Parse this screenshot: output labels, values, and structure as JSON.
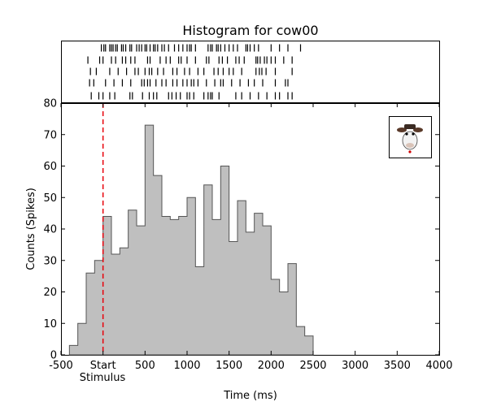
{
  "chart_data": {
    "type": "bar",
    "title": "Histogram for cow00",
    "xlabel": "Time (ms)",
    "ylabel": "Counts (Spikes)",
    "xlim": [
      -500,
      4000
    ],
    "ylim": [
      0,
      80
    ],
    "xtick_values": [
      -500,
      0,
      500,
      1000,
      1500,
      2000,
      2500,
      3000,
      3500,
      4000
    ],
    "xtick_labels": [
      "-500",
      "Start",
      "500",
      "1000",
      "1500",
      "2000",
      "2500",
      "3000",
      "3500",
      "4000"
    ],
    "xtick_sublabel": "Stimulus",
    "ytick_values": [
      0,
      10,
      20,
      30,
      40,
      50,
      60,
      70,
      80
    ],
    "ytick_labels": [
      "0",
      "10",
      "20",
      "30",
      "40",
      "50",
      "60",
      "70",
      "80"
    ],
    "bin_start": -400,
    "bin_width": 100,
    "values": [
      3,
      10,
      26,
      30,
      44,
      32,
      34,
      46,
      41,
      73,
      57,
      44,
      43,
      44,
      50,
      28,
      54,
      43,
      60,
      36,
      49,
      39,
      45,
      41,
      24,
      20,
      29,
      9,
      6
    ],
    "fill_color": "#bfbfbf",
    "edge_color": "#555555",
    "stimulus_marker": {
      "x": 0,
      "color": "#e8000b",
      "style": "dashed"
    },
    "raster": {
      "rows": [
        [
          -20,
          10,
          30,
          80,
          100,
          120,
          150,
          170,
          220,
          240,
          270,
          320,
          340,
          400,
          430,
          460,
          500,
          520,
          560,
          600,
          620,
          650,
          700,
          730,
          780,
          850,
          900,
          950,
          1000,
          1030,
          1050,
          1100,
          1250,
          1280,
          1300,
          1350,
          1370,
          1400,
          1450,
          1500,
          1550,
          1600,
          1700,
          1720,
          1750,
          1800,
          1850,
          2000,
          2100,
          2200,
          2350
        ],
        [
          -180,
          -40,
          0,
          100,
          150,
          230,
          270,
          330,
          380,
          530,
          560,
          680,
          750,
          800,
          900,
          930,
          1000,
          1100,
          1230,
          1260,
          1380,
          1420,
          1480,
          1580,
          1620,
          1680,
          1820,
          1840,
          1870,
          1920,
          1950,
          2000,
          2050,
          2150,
          2250
        ],
        [
          -150,
          -80,
          80,
          180,
          280,
          380,
          420,
          500,
          550,
          580,
          650,
          720,
          830,
          880,
          970,
          1030,
          1130,
          1200,
          1320,
          1370,
          1430,
          1500,
          1550,
          1650,
          1820,
          1860,
          1890,
          1940,
          2050,
          2250
        ],
        [
          -160,
          -110,
          30,
          130,
          230,
          330,
          460,
          490,
          530,
          560,
          630,
          700,
          750,
          830,
          880,
          950,
          1000,
          1050,
          1080,
          1130,
          1230,
          1330,
          1400,
          1430,
          1530,
          1630,
          1730,
          1800,
          1900,
          2050,
          2170,
          2200
        ],
        [
          -140,
          -50,
          0,
          80,
          140,
          320,
          350,
          470,
          550,
          600,
          640,
          780,
          820,
          870,
          920,
          1000,
          1030,
          1080,
          1200,
          1250,
          1280,
          1300,
          1380,
          1580,
          1650,
          1750,
          1850,
          1950,
          2050,
          2100,
          2200,
          2250
        ]
      ]
    },
    "legend_icon": "cow-face-icon",
    "legend_placement": "top-right",
    "grid": false
  }
}
